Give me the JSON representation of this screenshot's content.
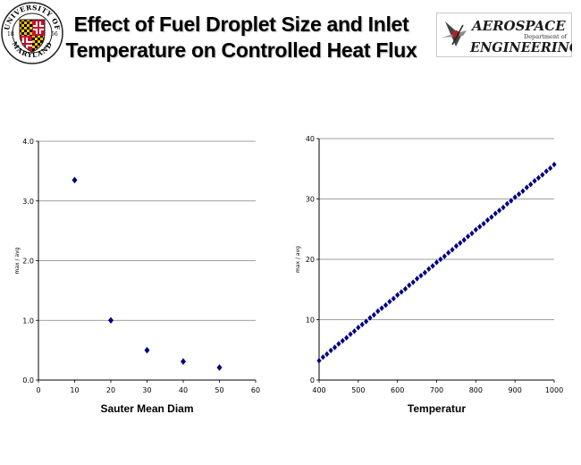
{
  "slide": {
    "title_lines": [
      "Effect of Fuel Droplet Size and Inlet",
      "Temperature on Controlled Heat Flux"
    ],
    "umd_logo": {
      "top_text": "UNIVERSITY OF",
      "bottom_text": "MARYLAND",
      "year_left": "18",
      "year_right": "56"
    },
    "aero_logo": {
      "line1": "AEROSPACE",
      "small": "Department of",
      "line2": "ENGINEERING"
    }
  },
  "colors": {
    "marker": "#000080",
    "grid": "#7f7f7f",
    "axis": "#000000"
  },
  "chart_data": [
    {
      "type": "scatter",
      "xlabel": "Sauter Mean Diam",
      "ylabel": "max / avg",
      "xlim": [
        0,
        60
      ],
      "ylim": [
        0,
        4
      ],
      "x_ticks": [
        0,
        10,
        20,
        30,
        40,
        50,
        60
      ],
      "y_ticks": [
        0,
        1,
        2,
        3,
        4
      ],
      "y_tick_labels": [
        "0.0",
        "1.0",
        "2.0",
        "3.0",
        "4.0"
      ],
      "x": [
        10,
        20,
        30,
        40,
        50
      ],
      "y": [
        3.35,
        1.0,
        0.5,
        0.31,
        0.21
      ],
      "grid": "horizontal"
    },
    {
      "type": "scatter",
      "xlabel": "Temperatur",
      "ylabel": "max / avg",
      "xlim": [
        400,
        1000
      ],
      "ylim": [
        0,
        40
      ],
      "x_ticks": [
        400,
        500,
        600,
        700,
        800,
        900,
        1000
      ],
      "y_ticks": [
        0,
        10,
        20,
        30,
        40
      ],
      "y_tick_labels": [
        "0",
        "10",
        "20",
        "30",
        "40"
      ],
      "x": [
        400,
        410,
        420,
        430,
        440,
        450,
        460,
        470,
        480,
        490,
        500,
        510,
        520,
        530,
        540,
        550,
        560,
        570,
        580,
        590,
        600,
        610,
        620,
        630,
        640,
        650,
        660,
        670,
        680,
        690,
        700,
        710,
        720,
        730,
        740,
        750,
        760,
        770,
        780,
        790,
        800,
        810,
        820,
        830,
        840,
        850,
        860,
        870,
        880,
        890,
        900,
        910,
        920,
        930,
        940,
        950,
        960,
        970,
        980,
        990,
        1000
      ],
      "y": [
        3.2,
        3.8,
        4.3,
        4.9,
        5.4,
        6.0,
        6.5,
        7.0,
        7.6,
        8.1,
        8.7,
        9.2,
        9.7,
        10.3,
        10.8,
        11.4,
        11.9,
        12.4,
        13.0,
        13.5,
        14.1,
        14.6,
        15.1,
        15.7,
        16.2,
        16.8,
        17.3,
        17.8,
        18.4,
        18.9,
        19.5,
        20.0,
        20.5,
        21.1,
        21.6,
        22.2,
        22.7,
        23.2,
        23.8,
        24.3,
        24.9,
        25.4,
        25.9,
        26.5,
        27.0,
        27.6,
        28.1,
        28.6,
        29.2,
        29.7,
        30.3,
        30.8,
        31.3,
        31.9,
        32.4,
        33.0,
        33.5,
        34.0,
        34.6,
        35.1,
        35.7
      ],
      "grid": "horizontal"
    }
  ]
}
